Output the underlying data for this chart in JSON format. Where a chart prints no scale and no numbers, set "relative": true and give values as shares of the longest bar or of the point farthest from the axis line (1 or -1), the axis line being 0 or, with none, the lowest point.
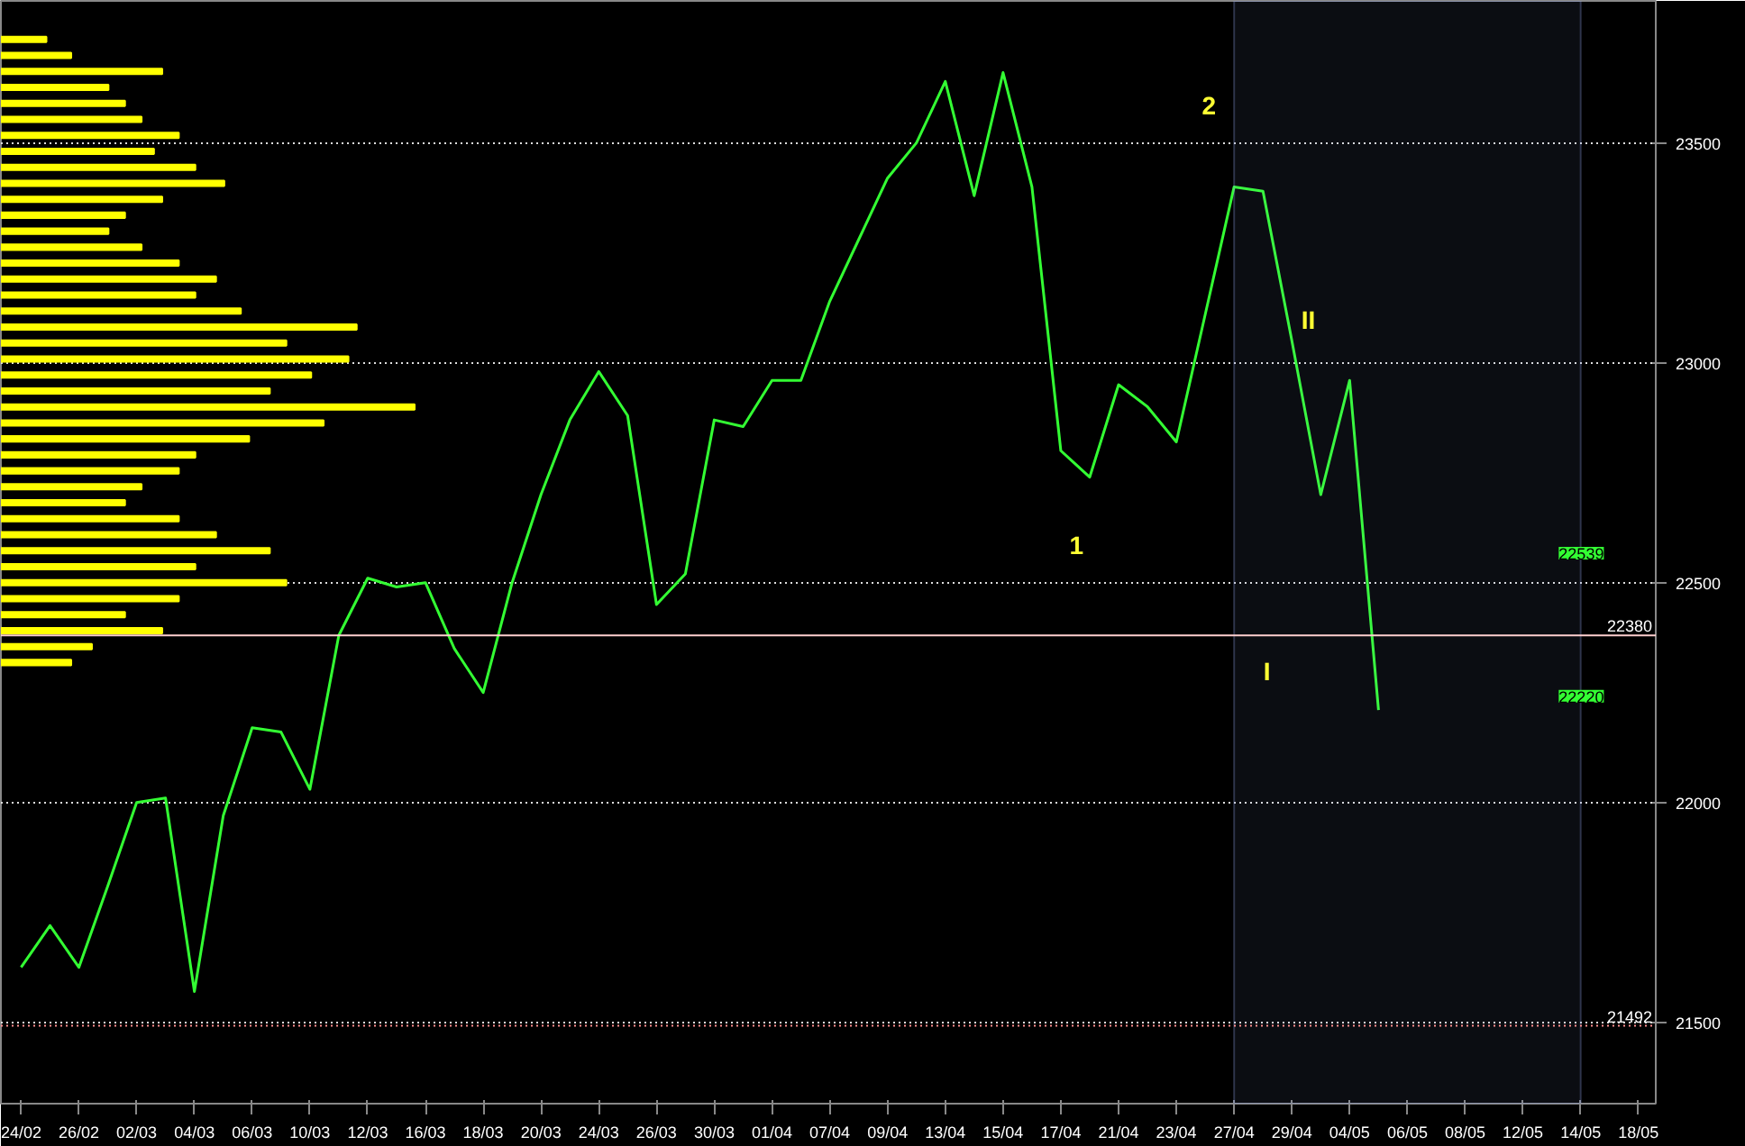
{
  "chart_data": [
    {
      "type": "line",
      "categories": [
        "24/02",
        null,
        "26/02",
        null,
        "02/03",
        null,
        "04/03",
        null,
        "06/03",
        null,
        "10/03",
        null,
        "12/03",
        null,
        "16/03",
        null,
        "18/03",
        null,
        "20/03",
        null,
        "24/03",
        null,
        "26/03",
        null,
        "30/03",
        null,
        "01/04",
        null,
        "07/04",
        null,
        "09/04",
        null,
        "13/04",
        null,
        "15/04",
        null,
        "17/04",
        null,
        "21/04",
        null,
        "23/04",
        null,
        "27/04",
        null,
        "29/04",
        null,
        "04/05",
        null,
        "06/05",
        null,
        "08/05",
        null,
        "12/05",
        null,
        "14/05",
        null,
        "18/05"
      ],
      "series": [
        {
          "color": "#33ff33",
          "values": [
            21625,
            21720,
            21625,
            21810,
            22000,
            22010,
            21570,
            21970,
            22170,
            22160,
            22030,
            22380,
            22510,
            22490,
            22500,
            22350,
            22250,
            22500,
            22700,
            22870,
            22980,
            22880,
            22450,
            22520,
            22870,
            22855,
            22960,
            22960,
            23140,
            23280,
            23420,
            23500,
            23640,
            23380,
            23660,
            23400,
            22800,
            22740,
            22950,
            22900,
            22820,
            23110,
            23400,
            23390,
            23050,
            22700,
            22960,
            22210,
            null,
            null,
            null,
            null,
            null,
            null,
            null,
            null,
            null
          ]
        }
      ],
      "ylim": [
        21315,
        23823
      ],
      "yticks": [
        21500,
        22000,
        22500,
        23000,
        23500
      ],
      "grid": "y",
      "ref_lines": [
        {
          "axis": "y",
          "value": 22380,
          "label": "22380",
          "color": "#ffd0d0",
          "line_style": "solid"
        },
        {
          "axis": "y",
          "value": 21492,
          "label": "21492",
          "color": "#ff9090",
          "line_style": "dotted"
        }
      ],
      "bands": [
        {
          "axis": "x",
          "from": "27/04",
          "to": "14/05",
          "color": "#8aa0e0"
        }
      ],
      "annotations": [
        "1",
        "2",
        "I",
        "II",
        "22539",
        "22220"
      ]
    },
    {
      "type": "bar",
      "orientation": "horizontal",
      "relative": true,
      "color": "#ffff00",
      "categories": [
        null,
        null,
        null,
        null,
        null,
        null,
        null,
        null,
        null,
        null,
        null,
        null,
        null,
        null,
        null,
        null,
        null,
        null,
        null,
        null,
        null,
        null,
        null,
        null,
        null,
        null,
        null,
        null,
        null,
        null,
        null,
        null,
        null,
        null,
        null,
        null,
        null,
        null,
        null,
        null
      ],
      "values": [
        0.11,
        0.17,
        0.39,
        0.26,
        0.3,
        0.34,
        0.43,
        0.37,
        0.47,
        0.54,
        0.39,
        0.3,
        0.26,
        0.34,
        0.43,
        0.52,
        0.47,
        0.58,
        0.86,
        0.69,
        0.84,
        0.75,
        0.65,
        1,
        0.78,
        0.6,
        0.47,
        0.43,
        0.34,
        0.3,
        0.43,
        0.52,
        0.65,
        0.47,
        0.69,
        0.43,
        0.3,
        0.39,
        0.22,
        0.17
      ]
    }
  ]
}
